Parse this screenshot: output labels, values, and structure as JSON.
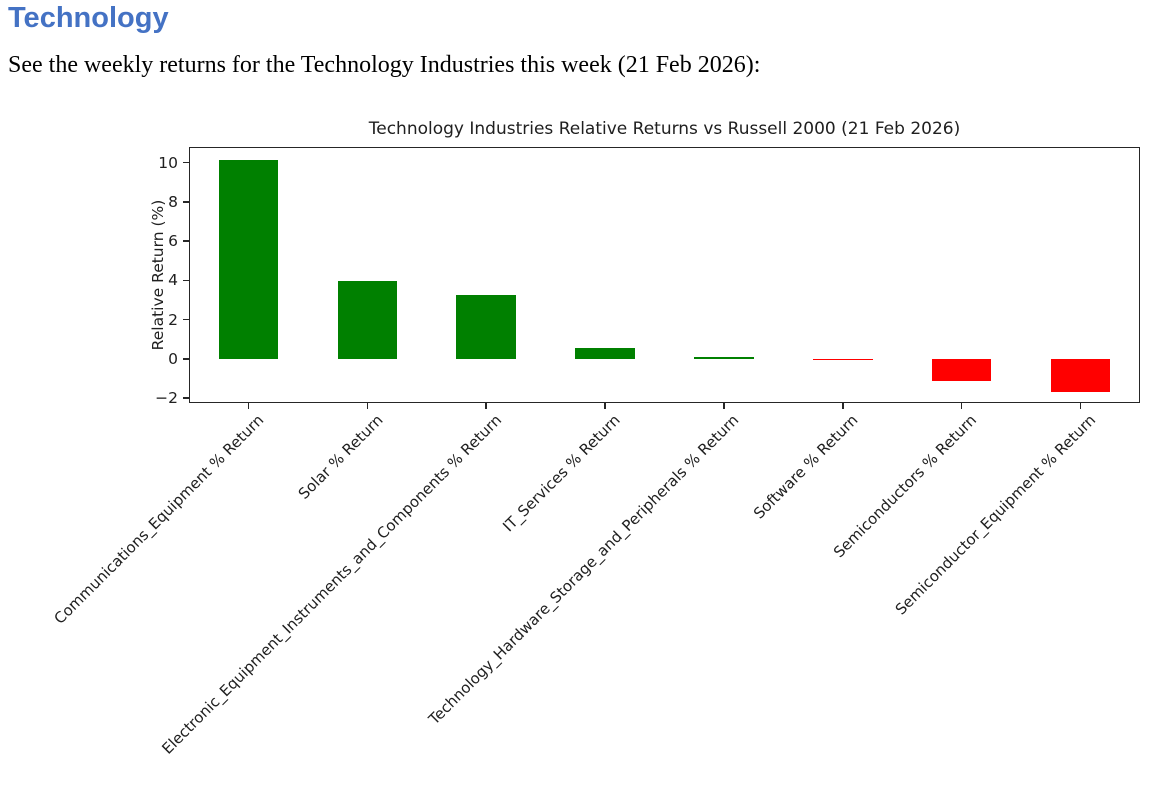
{
  "document": {
    "heading": "Technology",
    "heading_color": "#4472C4",
    "intro": "See the weekly returns for the Technology Industries this week (21 Feb 2026):"
  },
  "chart_data": {
    "type": "bar",
    "title": "Technology Industries Relative Returns vs Russell 2000 (21 Feb 2026)",
    "xlabel": "",
    "ylabel": "Relative Return (%)",
    "categories": [
      "Communications_Equipment % Return",
      "Solar % Return",
      "Electronic_Equipment_Instruments_and_Components % Return",
      "IT_Services % Return",
      "Technology_Hardware_Storage_and_Peripherals % Return",
      "Software % Return",
      "Semiconductors % Return",
      "Semiconductor_Equipment % Return"
    ],
    "values": [
      10.15,
      3.95,
      3.25,
      0.55,
      0.05,
      -0.05,
      -1.15,
      -1.7
    ],
    "positive_color": "#008000",
    "negative_color": "#ff0000",
    "yticks": [
      -2,
      0,
      2,
      4,
      6,
      8,
      10
    ],
    "ylim": [
      -2.25,
      10.8
    ],
    "grid": false,
    "legend": null,
    "x_label_rotation_deg": 45
  }
}
